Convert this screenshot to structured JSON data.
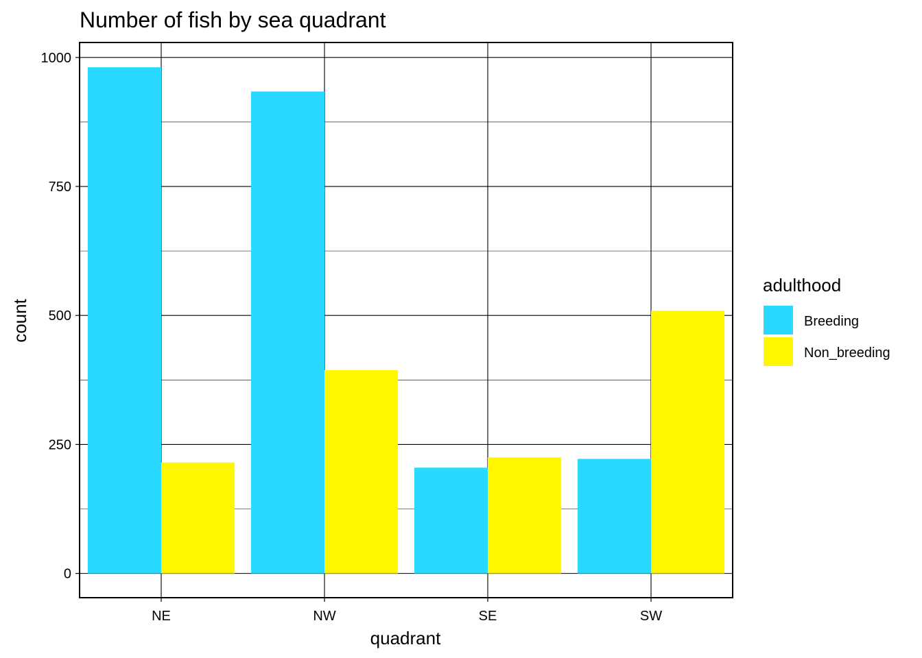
{
  "chart_data": {
    "type": "bar",
    "title": "Number of fish by sea quadrant",
    "xlabel": "quadrant",
    "ylabel": "count",
    "categories": [
      "NE",
      "NW",
      "SE",
      "SW"
    ],
    "series": [
      {
        "name": "Breeding",
        "color": "#29D9FF",
        "values": [
          981,
          934,
          205,
          222
        ]
      },
      {
        "name": "Non_breeding",
        "color": "#FFF600",
        "values": [
          215,
          394,
          225,
          509
        ]
      }
    ],
    "ylim": [
      -47,
      1029
    ],
    "yticks": [
      0,
      250,
      500,
      750,
      1000
    ],
    "legend": {
      "title": "adulthood",
      "position": "right"
    },
    "grid": true
  }
}
